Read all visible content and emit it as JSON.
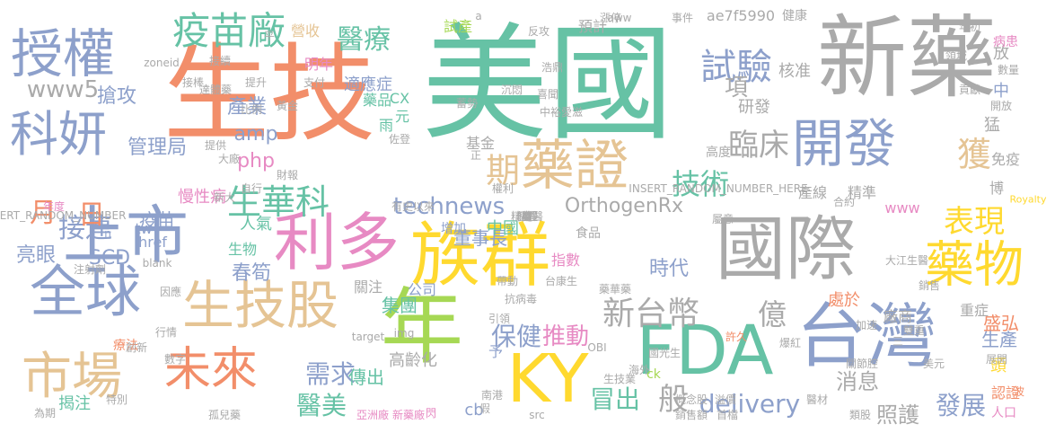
{
  "palette": {
    "orange": "#f28e6a",
    "green": "#66c2a5",
    "gray": "#aaaaaa",
    "blue": "#8da0cb",
    "pink": "#e78ac3",
    "lime": "#a6d854",
    "yellow": "#ffd92f",
    "tan": "#e5c494"
  },
  "words": [
    {
      "text": "美國",
      "color": "green"
    },
    {
      "text": "生技",
      "color": "orange"
    },
    {
      "text": "新藥",
      "color": "gray"
    },
    {
      "text": "授權",
      "color": "blue"
    },
    {
      "text": "科妍",
      "color": "blue"
    },
    {
      "text": "上市",
      "color": "blue"
    },
    {
      "text": "全球",
      "color": "blue"
    },
    {
      "text": "市場",
      "color": "tan"
    },
    {
      "text": "未來",
      "color": "orange"
    },
    {
      "text": "生技股",
      "color": "tan"
    },
    {
      "text": "利多",
      "color": "pink"
    },
    {
      "text": "族群",
      "color": "yellow"
    },
    {
      "text": "年",
      "color": "lime"
    },
    {
      "text": "KY",
      "color": "yellow"
    },
    {
      "text": "FDA",
      "color": "green"
    },
    {
      "text": "國際",
      "color": "gray"
    },
    {
      "text": "台灣",
      "color": "blue"
    },
    {
      "text": "藥物",
      "color": "yellow"
    },
    {
      "text": "開發",
      "color": "blue"
    },
    {
      "text": "藥證",
      "color": "tan"
    },
    {
      "text": "疫苗廠",
      "color": "green"
    },
    {
      "text": "醫療",
      "color": "green"
    },
    {
      "text": "試驗",
      "color": "blue"
    },
    {
      "text": "臨床",
      "color": "gray"
    },
    {
      "text": "獲",
      "color": "tan"
    },
    {
      "text": "技術",
      "color": "green"
    },
    {
      "text": "表現",
      "color": "yellow"
    },
    {
      "text": "生華科",
      "color": "green"
    },
    {
      "text": "期",
      "color": "tan"
    },
    {
      "text": "新台幣",
      "color": "gray"
    },
    {
      "text": "億",
      "color": "gray"
    },
    {
      "text": "需求",
      "color": "blue"
    },
    {
      "text": "醫美",
      "color": "green"
    },
    {
      "text": "保健",
      "color": "blue"
    },
    {
      "text": "推動",
      "color": "pink"
    },
    {
      "text": "冒出",
      "color": "green"
    },
    {
      "text": "般",
      "color": "gray"
    },
    {
      "text": "delivery",
      "color": "blue"
    },
    {
      "text": "消息",
      "color": "gray"
    },
    {
      "text": "發展",
      "color": "blue"
    },
    {
      "text": "照護",
      "color": "gray"
    },
    {
      "text": "春筍",
      "color": "blue"
    },
    {
      "text": "接連",
      "color": "blue"
    },
    {
      "text": "月",
      "color": "orange"
    },
    {
      "text": "日",
      "color": "orange"
    },
    {
      "text": "亮眼",
      "color": "blue"
    },
    {
      "text": "technews",
      "color": "blue"
    },
    {
      "text": "OrthogenRx",
      "color": "gray"
    },
    {
      "text": "董事長",
      "color": "blue"
    },
    {
      "text": "中國",
      "color": "green"
    },
    {
      "text": "時代",
      "color": "blue"
    },
    {
      "text": "www5",
      "color": "gray"
    },
    {
      "text": "amp",
      "color": "blue"
    },
    {
      "text": "php",
      "color": "pink"
    },
    {
      "text": "產業",
      "color": "blue"
    },
    {
      "text": "管理局",
      "color": "blue"
    },
    {
      "text": "搶攻",
      "color": "blue"
    },
    {
      "text": "營收",
      "color": "tan"
    },
    {
      "text": "明年",
      "color": "pink"
    },
    {
      "text": "適應症",
      "color": "blue"
    },
    {
      "text": "試產",
      "color": "lime"
    },
    {
      "text": "預計",
      "color": "gray"
    },
    {
      "text": "ae7f5990",
      "color": "gray"
    },
    {
      "text": "健康",
      "color": "gray"
    },
    {
      "text": "項",
      "color": "gray"
    },
    {
      "text": "核准",
      "color": "gray"
    },
    {
      "text": "研發",
      "color": "gray"
    },
    {
      "text": "中",
      "color": "blue"
    },
    {
      "text": "放",
      "color": "gray"
    },
    {
      "text": "猛",
      "color": "gray"
    },
    {
      "text": "博",
      "color": "gray"
    },
    {
      "text": "免疫",
      "color": "gray"
    },
    {
      "text": "高度",
      "color": "gray"
    },
    {
      "text": "基金",
      "color": "gray"
    },
    {
      "text": "產線",
      "color": "gray"
    },
    {
      "text": "精準",
      "color": "gray"
    },
    {
      "text": "www",
      "color": "pink"
    },
    {
      "text": "人氣",
      "color": "green"
    },
    {
      "text": "疫苗",
      "color": "blue"
    },
    {
      "text": "生物",
      "color": "green"
    },
    {
      "text": "食品",
      "color": "gray"
    },
    {
      "text": "指數",
      "color": "pink"
    },
    {
      "text": "增加",
      "color": "blue"
    },
    {
      "text": "SCD",
      "color": "blue"
    },
    {
      "text": "關注",
      "color": "gray"
    },
    {
      "text": "公司",
      "color": "blue"
    },
    {
      "text": "集團",
      "color": "green"
    },
    {
      "text": "處於",
      "color": "orange"
    },
    {
      "text": "廠商",
      "color": "gray"
    },
    {
      "text": "盛弘",
      "color": "orange"
    },
    {
      "text": "重症",
      "color": "gray"
    },
    {
      "text": "生產",
      "color": "blue"
    },
    {
      "text": "頭",
      "color": "yellow"
    },
    {
      "text": "認證",
      "color": "orange"
    },
    {
      "text": "人口",
      "color": "pink"
    },
    {
      "text": "高齡化",
      "color": "gray"
    },
    {
      "text": "予",
      "color": "blue"
    },
    {
      "text": "傳出",
      "color": "green"
    },
    {
      "text": "揭注",
      "color": "green"
    },
    {
      "text": "cb",
      "color": "blue"
    },
    {
      "text": "ck",
      "color": "lime"
    },
    {
      "text": "療法",
      "color": "orange"
    },
    {
      "text": "慢性病",
      "color": "pink"
    },
    {
      "text": "tw",
      "color": "blue"
    },
    {
      "text": "href",
      "color": "blue"
    },
    {
      "text": "元",
      "color": "green"
    },
    {
      "text": "雨",
      "color": "green"
    },
    {
      "text": "藥品",
      "color": "green"
    },
    {
      "text": "CX",
      "color": "green"
    },
    {
      "text": "病患",
      "color": "pink"
    },
    {
      "text": "a",
      "color": "gray"
    },
    {
      "text": "n",
      "color": "blue"
    },
    {
      "text": "三",
      "color": "gray"
    },
    {
      "text": "INSERT_RANDOM_NUMBER",
      "color": "gray"
    },
    {
      "text": "INSERT_RANDOM_NUMBER_HERE",
      "color": "gray"
    },
    {
      "text": "Royalty",
      "color": "yellow"
    },
    {
      "text": "zoneid",
      "color": "gray"
    },
    {
      "text": "blank",
      "color": "gray"
    },
    {
      "text": "target",
      "color": "gray"
    },
    {
      "text": "img",
      "color": "gray"
    },
    {
      "text": "src",
      "color": "gray"
    },
    {
      "text": "aww",
      "color": "gray"
    },
    {
      "text": "OBI",
      "color": "gray"
    },
    {
      "text": "閃",
      "color": "pink"
    },
    {
      "text": "孤兒藥",
      "color": "gray"
    },
    {
      "text": "新藥廠",
      "color": "pink"
    },
    {
      "text": "亞洲廠",
      "color": "pink"
    },
    {
      "text": "許久",
      "color": "orange"
    },
    {
      "text": "爆紅",
      "color": "gray"
    },
    {
      "text": "醫材",
      "color": "gray"
    },
    {
      "text": "關節腔",
      "color": "gray"
    },
    {
      "text": "美元",
      "color": "gray"
    },
    {
      "text": "加速",
      "color": "gray"
    },
    {
      "text": "雙重",
      "color": "gray"
    },
    {
      "text": "行情",
      "color": "gray"
    },
    {
      "text": "注射劑",
      "color": "gray"
    },
    {
      "text": "因應",
      "color": "gray"
    },
    {
      "text": "創新",
      "color": "gray"
    },
    {
      "text": "數字",
      "color": "gray"
    },
    {
      "text": "特別",
      "color": "gray"
    },
    {
      "text": "為期",
      "color": "gray"
    },
    {
      "text": "年度",
      "color": "pink"
    },
    {
      "text": "年初",
      "color": "gray"
    },
    {
      "text": "領域",
      "color": "gray"
    },
    {
      "text": "數量",
      "color": "gray"
    },
    {
      "text": "開放",
      "color": "gray"
    },
    {
      "text": "貢獻",
      "color": "gray"
    },
    {
      "text": "屬意",
      "color": "gray"
    },
    {
      "text": "合約",
      "color": "gray"
    },
    {
      "text": "大江生醫",
      "color": "gray"
    },
    {
      "text": "銷售",
      "color": "gray"
    },
    {
      "text": "展開",
      "color": "gray"
    },
    {
      "text": "波",
      "color": "orange"
    },
    {
      "text": "類股",
      "color": "gray"
    },
    {
      "text": "銷售額",
      "color": "gray"
    },
    {
      "text": "概念股",
      "color": "gray"
    },
    {
      "text": "生技業",
      "color": "gray"
    },
    {
      "text": "南港",
      "color": "gray"
    },
    {
      "text": "海外",
      "color": "gray"
    },
    {
      "text": "溢價",
      "color": "gray"
    },
    {
      "text": "首檔",
      "color": "gray"
    },
    {
      "text": "國光生",
      "color": "gray"
    },
    {
      "text": "藥華藥",
      "color": "gray"
    },
    {
      "text": "台康生",
      "color": "gray"
    },
    {
      "text": "抗病毒",
      "color": "gray"
    },
    {
      "text": "引領",
      "color": "gray"
    },
    {
      "text": "帶動",
      "color": "gray"
    },
    {
      "text": "漲停",
      "color": "gray"
    },
    {
      "text": "反攻",
      "color": "gray"
    },
    {
      "text": "浩鼎",
      "color": "gray"
    },
    {
      "text": "蓄勢",
      "color": "gray"
    },
    {
      "text": "沉悶",
      "color": "gray"
    },
    {
      "text": "喜聞",
      "color": "gray"
    },
    {
      "text": "中裕愛滋",
      "color": "gray"
    },
    {
      "text": "佐登",
      "color": "gray"
    },
    {
      "text": "權利",
      "color": "gray"
    },
    {
      "text": "財報",
      "color": "gray"
    },
    {
      "text": "自行",
      "color": "gray"
    },
    {
      "text": "新大",
      "color": "gray"
    },
    {
      "text": "比例",
      "color": "gray"
    },
    {
      "text": "黃金",
      "color": "gray"
    },
    {
      "text": "提供",
      "color": "gray"
    },
    {
      "text": "大廠",
      "color": "gray"
    },
    {
      "text": "支付",
      "color": "gray"
    },
    {
      "text": "提升",
      "color": "gray"
    },
    {
      "text": "接棒",
      "color": "gray"
    },
    {
      "text": "達體藥",
      "color": "gray"
    },
    {
      "text": "事件",
      "color": "gray"
    },
    {
      "text": "接續",
      "color": "gray"
    },
    {
      "text": "正",
      "color": "gray"
    },
    {
      "text": "假",
      "color": "gray"
    },
    {
      "text": "平",
      "color": "gray"
    },
    {
      "text": "有史以來",
      "color": "gray"
    },
    {
      "text": "保證",
      "color": "gray"
    },
    {
      "text": "精準醫",
      "color": "gray"
    },
    {
      "text": "更",
      "color": "gray"
    },
    {
      "text": "嚴",
      "color": "gray"
    },
    {
      "text": "萬",
      "color": "gray"
    },
    {
      "text": "寫",
      "color": "gray"
    },
    {
      "text": "歷程",
      "color": "gray"
    }
  ]
}
